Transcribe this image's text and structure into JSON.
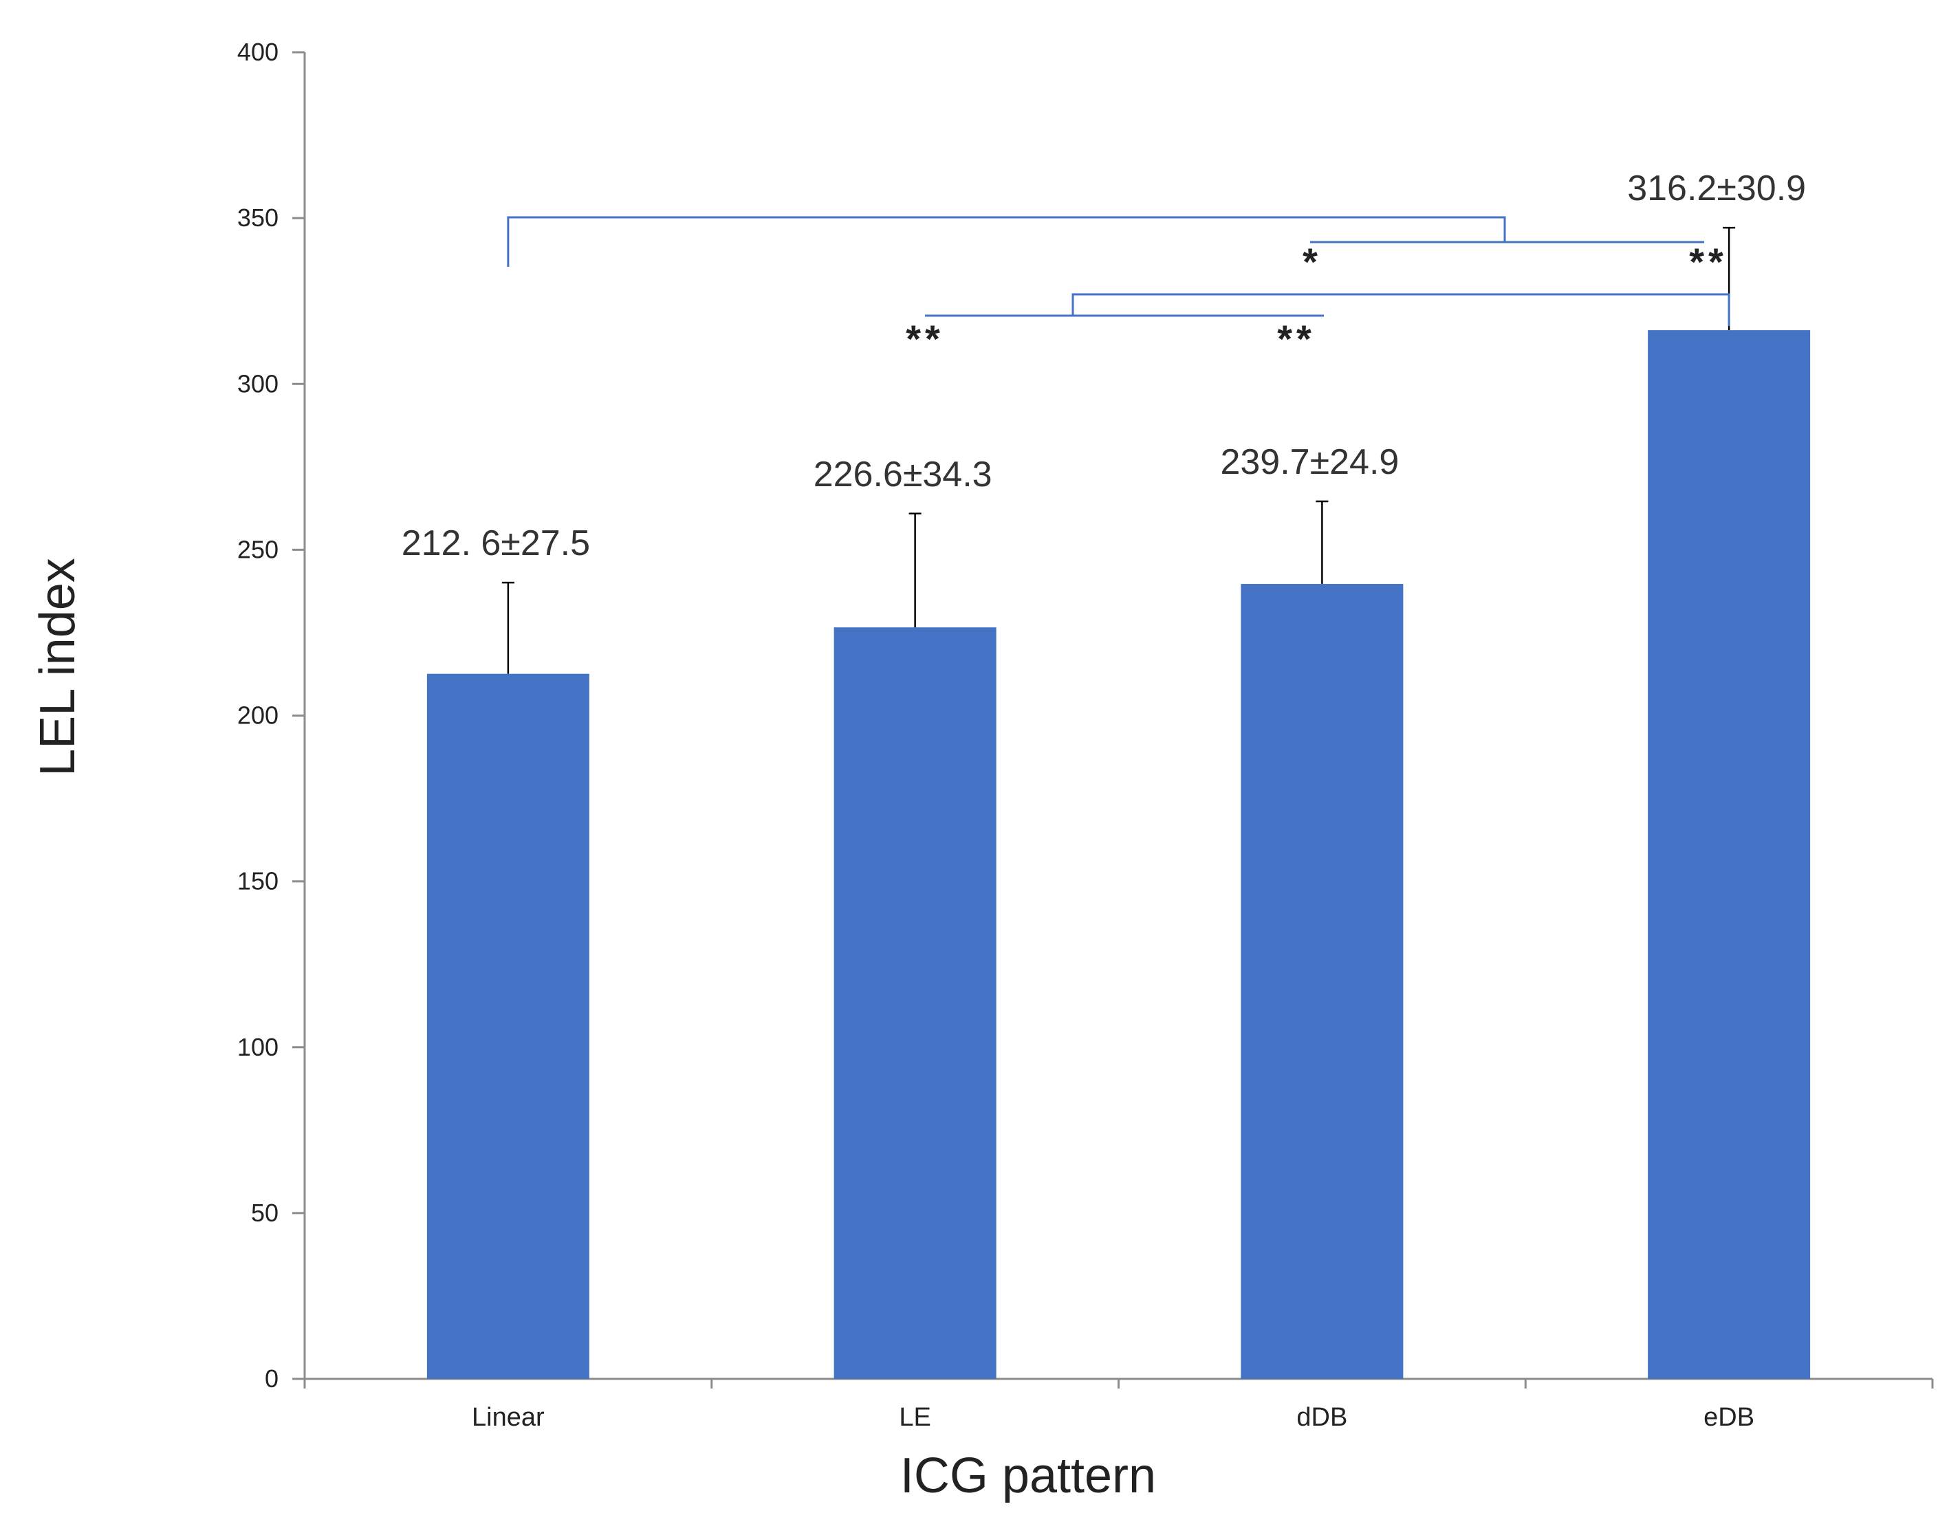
{
  "chart_data": {
    "type": "bar",
    "title": "",
    "xlabel": "ICG pattern",
    "ylabel": "LEL index",
    "ylim": [
      0,
      400
    ],
    "yticks": [
      0,
      50,
      100,
      150,
      200,
      250,
      300,
      350,
      400
    ],
    "grid": false,
    "categories": [
      "Linear",
      "LE",
      "dDB",
      "eDB"
    ],
    "values": [
      212.6,
      226.6,
      239.7,
      316.2
    ],
    "errors": [
      27.5,
      34.3,
      24.9,
      30.9
    ],
    "bar_labels": [
      "212. 6±27.5",
      "226.6±34.3",
      "239.7±24.9",
      "316.2±30.9"
    ],
    "bar_color": "#4472C4",
    "bracket_color": "#4472C4",
    "significance": [
      {
        "from": "Linear",
        "to": "eDB",
        "label": "*"
      },
      {
        "from": "LE",
        "to": "eDB",
        "label": "**"
      },
      {
        "from": "dDB",
        "to": "eDB",
        "label": "**"
      },
      {
        "from": "Linear",
        "to": "dDB",
        "label": "**"
      }
    ]
  }
}
